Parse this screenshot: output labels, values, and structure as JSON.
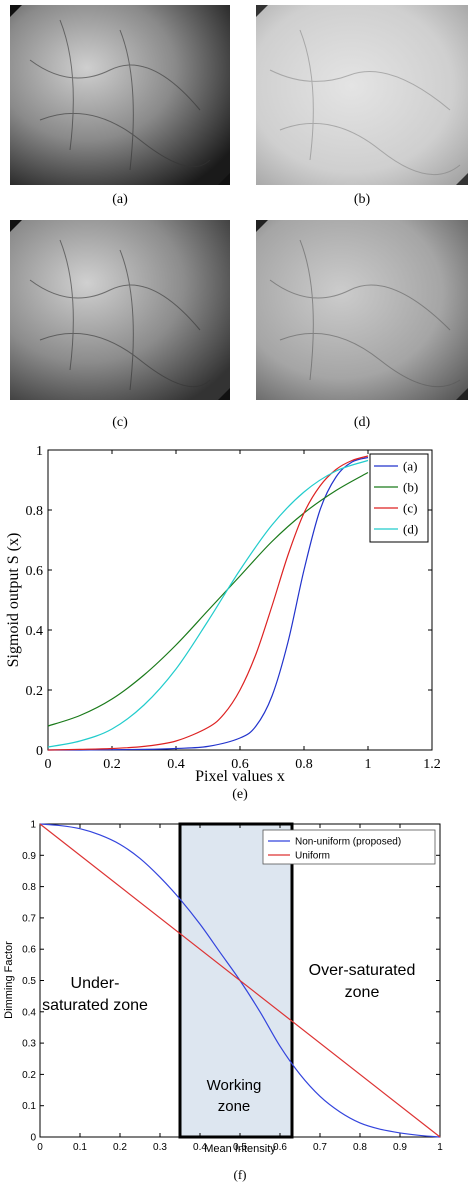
{
  "panels": {
    "a": {
      "caption": "(a)"
    },
    "b": {
      "caption": "(b)"
    },
    "c": {
      "caption": "(c)"
    },
    "d": {
      "caption": "(d)"
    }
  },
  "chart_data": [
    {
      "type": "line",
      "caption": "(e)",
      "xlabel": "Pixel values x",
      "ylabel": "Sigmoid output S (x)",
      "xlim": [
        0,
        1.2
      ],
      "ylim": [
        0,
        1
      ],
      "xticks": [
        "0",
        "0.2",
        "0.4",
        "0.6",
        "0.8",
        "1",
        "1.2"
      ],
      "yticks": [
        "0",
        "0.2",
        "0.4",
        "0.6",
        "0.8",
        "1"
      ],
      "legend_position": "top-right",
      "grid": false,
      "series": [
        {
          "name": "(a)",
          "color": "#2233cc",
          "x": [
            0,
            0.1,
            0.2,
            0.3,
            0.4,
            0.5,
            0.6,
            0.65,
            0.7,
            0.75,
            0.8,
            0.85,
            0.9,
            0.95,
            1.0
          ],
          "y": [
            0.0,
            0.0,
            0.001,
            0.002,
            0.005,
            0.012,
            0.04,
            0.08,
            0.18,
            0.36,
            0.6,
            0.8,
            0.91,
            0.96,
            0.975
          ]
        },
        {
          "name": "(b)",
          "color": "#1a7a1a",
          "x": [
            0,
            0.1,
            0.2,
            0.3,
            0.4,
            0.5,
            0.6,
            0.7,
            0.8,
            0.9,
            1.0
          ],
          "y": [
            0.08,
            0.115,
            0.17,
            0.25,
            0.35,
            0.465,
            0.58,
            0.695,
            0.79,
            0.865,
            0.925
          ]
        },
        {
          "name": "(c)",
          "color": "#dd2222",
          "x": [
            0,
            0.1,
            0.2,
            0.3,
            0.4,
            0.5,
            0.55,
            0.6,
            0.65,
            0.7,
            0.75,
            0.8,
            0.85,
            0.9,
            0.95,
            1.0
          ],
          "y": [
            0.0,
            0.002,
            0.005,
            0.012,
            0.03,
            0.075,
            0.12,
            0.2,
            0.32,
            0.48,
            0.65,
            0.79,
            0.88,
            0.935,
            0.965,
            0.98
          ]
        },
        {
          "name": "(d)",
          "color": "#22cccc",
          "x": [
            0,
            0.1,
            0.2,
            0.3,
            0.4,
            0.5,
            0.6,
            0.7,
            0.8,
            0.9,
            1.0
          ],
          "y": [
            0.01,
            0.03,
            0.07,
            0.15,
            0.27,
            0.43,
            0.6,
            0.75,
            0.86,
            0.93,
            0.965
          ]
        }
      ]
    },
    {
      "type": "line",
      "caption": "(f)",
      "xlabel": "Mean Intensity",
      "ylabel": "Dimming Factor",
      "xlim": [
        0,
        1
      ],
      "ylim": [
        0,
        1
      ],
      "xticks": [
        "0",
        "0.1",
        "0.2",
        "0.3",
        "0.4",
        "0.5",
        "0.6",
        "0.7",
        "0.8",
        "0.9",
        "1"
      ],
      "yticks": [
        "0",
        "0.1",
        "0.2",
        "0.3",
        "0.4",
        "0.5",
        "0.6",
        "0.7",
        "0.8",
        "0.9",
        "1"
      ],
      "legend_position": "top-right",
      "grid": false,
      "shaded_region": {
        "x": [
          0.35,
          0.63
        ],
        "color": "#dde6f0"
      },
      "annotations": {
        "under": [
          "Under-",
          "saturated zone"
        ],
        "over": [
          "Over-saturated",
          "zone"
        ],
        "working": [
          "Working",
          "zone"
        ]
      },
      "series": [
        {
          "name": "Non-uniform (proposed)",
          "color": "#3344dd",
          "x": [
            0,
            0.05,
            0.1,
            0.15,
            0.2,
            0.25,
            0.3,
            0.35,
            0.4,
            0.45,
            0.5,
            0.55,
            0.6,
            0.65,
            0.7,
            0.75,
            0.8,
            0.85,
            0.9,
            0.95,
            1.0
          ],
          "y": [
            1.0,
            0.995,
            0.985,
            0.965,
            0.935,
            0.89,
            0.83,
            0.76,
            0.68,
            0.59,
            0.5,
            0.4,
            0.29,
            0.2,
            0.13,
            0.08,
            0.045,
            0.025,
            0.013,
            0.005,
            0.0
          ]
        },
        {
          "name": "Uniform",
          "color": "#dd3333",
          "x": [
            0,
            1
          ],
          "y": [
            1.0,
            0.0
          ]
        }
      ]
    }
  ]
}
